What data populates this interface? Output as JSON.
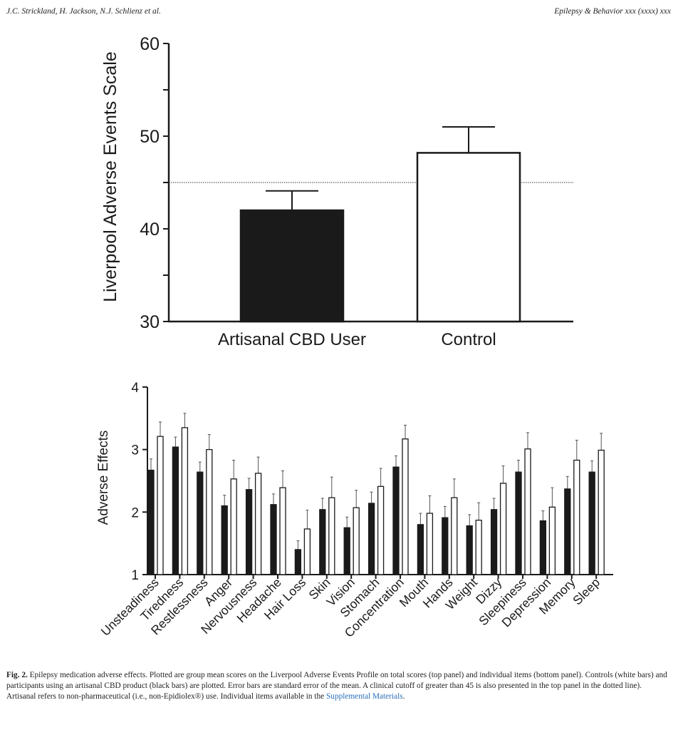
{
  "header": {
    "left": "J.C. Strickland, H. Jackson, N.J. Schlienz et al.",
    "right": "Epilepsy & Behavior xxx (xxxx) xxx"
  },
  "chart_data": [
    {
      "type": "bar",
      "ylabel": "Liverpool Adverse Events Scale",
      "ylim": [
        30,
        60
      ],
      "yticks": [
        "30",
        "40",
        "50",
        "60"
      ],
      "categories": [
        "Artisanal CBD User",
        "Control"
      ],
      "values": [
        42.0,
        48.2
      ],
      "errors": [
        2.1,
        2.8
      ],
      "bar_colors": [
        "#1a1a1a",
        "#ffffff"
      ],
      "reference_line": {
        "value": 45,
        "style": "dotted"
      }
    },
    {
      "type": "bar",
      "ylabel": "Adverse Effects",
      "ylim": [
        1,
        4
      ],
      "yticks": [
        "1",
        "2",
        "3",
        "4"
      ],
      "categories": [
        "Unsteadiness",
        "Tiredness",
        "Restlessness",
        "Anger",
        "Nervousness",
        "Headache",
        "Hair Loss",
        "Skin",
        "Vision",
        "Stomach",
        "Concentration",
        "Mouth",
        "Hands",
        "Weight",
        "Dizzy",
        "Sleepiness",
        "Depression",
        "Memory",
        "Sleep"
      ],
      "series": [
        {
          "color": "#1a1a1a",
          "values": [
            2.67,
            3.04,
            2.64,
            2.1,
            2.36,
            2.12,
            1.4,
            2.04,
            1.75,
            2.14,
            2.72,
            1.8,
            1.91,
            1.78,
            2.04,
            2.64,
            1.86,
            2.37,
            2.64
          ],
          "errors": [
            0.18,
            0.16,
            0.16,
            0.17,
            0.18,
            0.17,
            0.14,
            0.18,
            0.17,
            0.18,
            0.18,
            0.18,
            0.18,
            0.18,
            0.18,
            0.19,
            0.16,
            0.2,
            0.18
          ]
        },
        {
          "color": "#ffffff",
          "values": [
            3.21,
            3.35,
            3.0,
            2.53,
            2.62,
            2.39,
            1.73,
            2.23,
            2.07,
            2.41,
            3.17,
            1.98,
            2.23,
            1.87,
            2.46,
            3.01,
            2.08,
            2.83,
            2.99
          ],
          "errors": [
            0.23,
            0.23,
            0.24,
            0.3,
            0.26,
            0.27,
            0.3,
            0.33,
            0.28,
            0.29,
            0.22,
            0.28,
            0.3,
            0.28,
            0.28,
            0.26,
            0.31,
            0.32,
            0.27
          ]
        }
      ]
    }
  ],
  "caption": {
    "label": "Fig. 2.",
    "text": " Epilepsy medication adverse effects. Plotted are group mean scores on the Liverpool Adverse Events Profile on total scores (top panel) and individual items (bottom panel). Controls (white bars) and participants using an artisanal CBD product (black bars) are plotted. Error bars are standard error of the mean. A clinical cutoff of greater than 45 is also presented in the top panel in the dotted line). Artisanal refers to non-pharmaceutical (i.e., non-Epidiolex®) use. Individual items available in the ",
    "link": "Supplemental Materials",
    "end": "."
  }
}
